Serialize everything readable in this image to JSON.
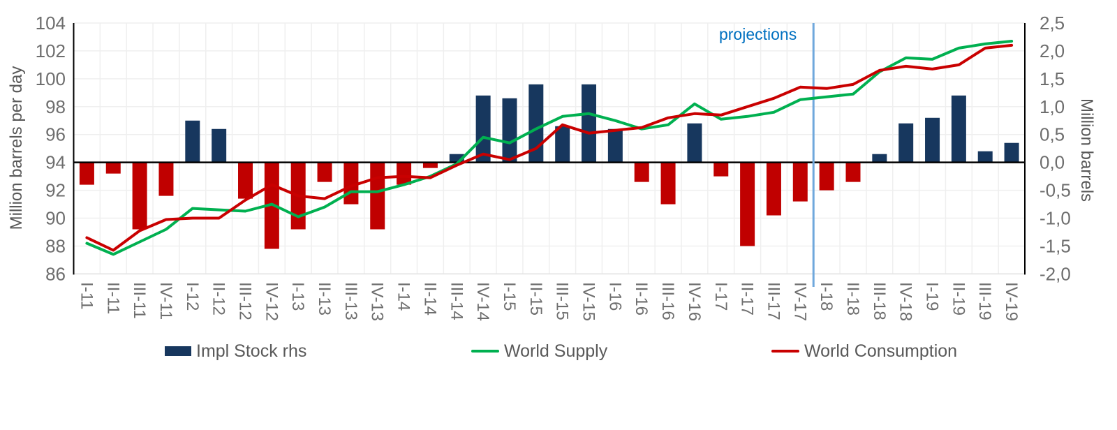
{
  "page": {
    "background": "#ffffff",
    "footer_band_color": "#000000"
  },
  "chart": {
    "left_axis": {
      "title": "Million barrels per day",
      "min": 86,
      "max": 104,
      "step": 2,
      "tick_labels": [
        "104",
        "102",
        "100",
        "98",
        "96",
        "94",
        "92",
        "90",
        "88",
        "86"
      ],
      "tick_values": [
        104,
        102,
        100,
        98,
        96,
        94,
        92,
        90,
        88,
        86
      ]
    },
    "right_axis": {
      "title": "Million barrels",
      "min": -2.0,
      "max": 2.5,
      "step": 0.5,
      "tick_labels": [
        "2,5",
        "2,0",
        "1,5",
        "1,0",
        "0,5",
        "0,0",
        "-0,5",
        "-1,0",
        "-1,5",
        "-2,0"
      ],
      "tick_values": [
        2.5,
        2.0,
        1.5,
        1.0,
        0.5,
        0.0,
        -0.5,
        -1.0,
        -1.5,
        -2.0
      ]
    },
    "projections": {
      "label": "projections",
      "label_color": "#0070C0",
      "line_color": "#6FA8DC",
      "boundary_index": 28
    },
    "colors": {
      "bar_positive": "#17375E",
      "bar_negative": "#C00000",
      "supply_line": "#00B050",
      "consumption_line": "#C90000",
      "gridline": "#EFEFEF",
      "axis_line": "#000000",
      "zero_line": "#000000",
      "tick_text": "#6E6E6E",
      "label_text": "#595959"
    }
  },
  "chart_data": {
    "type": "bar+line",
    "title": "",
    "xlabel": "",
    "ylabel_left": "Million barrels per day",
    "ylabel_right": "Million barrels",
    "left_axis_range": [
      86,
      104
    ],
    "right_axis_range": [
      -2.0,
      2.5
    ],
    "grid": "on",
    "legend_position": "bottom",
    "categories": [
      "I-11",
      "II-11",
      "III-11",
      "IV-11",
      "I-12",
      "II-12",
      "III-12",
      "IV-12",
      "I-13",
      "II-13",
      "III-13",
      "IV-13",
      "I-14",
      "II-14",
      "III-14",
      "IV-14",
      "I-15",
      "II-15",
      "III-15",
      "IV-15",
      "I-16",
      "II-16",
      "III-16",
      "IV-16",
      "I-17",
      "II-17",
      "III-17",
      "IV-17",
      "I-18",
      "II-18",
      "III-18",
      "IV-18",
      "I-19",
      "II-19",
      "III-19",
      "IV-19"
    ],
    "series": [
      {
        "name": "Impl Stock rhs",
        "type": "bar",
        "axis": "right",
        "color_positive": "#17375E",
        "color_negative": "#C00000",
        "values": [
          -0.4,
          -0.2,
          -1.2,
          -0.6,
          0.75,
          0.6,
          -0.65,
          -1.55,
          -1.2,
          -0.35,
          -0.75,
          -1.2,
          -0.4,
          -0.1,
          0.15,
          1.2,
          1.15,
          1.4,
          0.65,
          1.4,
          0.6,
          -0.35,
          -0.75,
          0.7,
          -0.25,
          -1.5,
          -0.95,
          -0.7,
          -0.5,
          -0.35,
          0.15,
          0.7,
          0.8,
          1.2,
          0.2,
          0.35
        ]
      },
      {
        "name": "World Supply",
        "type": "line",
        "axis": "left",
        "color": "#00B050",
        "values": [
          88.2,
          87.4,
          88.3,
          89.2,
          90.7,
          90.6,
          90.5,
          91.0,
          90.1,
          90.8,
          91.9,
          91.9,
          92.4,
          93.0,
          93.9,
          95.8,
          95.4,
          96.4,
          97.3,
          97.5,
          97.0,
          96.4,
          96.7,
          98.2,
          97.1,
          97.3,
          97.6,
          98.5,
          98.7,
          98.9,
          100.5,
          101.5,
          101.4,
          102.2,
          102.5,
          102.7
        ]
      },
      {
        "name": "World Consumption",
        "type": "line",
        "axis": "left",
        "color": "#C90000",
        "values": [
          88.6,
          87.7,
          89.1,
          89.9,
          90.0,
          90.0,
          91.3,
          92.4,
          91.6,
          91.4,
          92.3,
          92.9,
          93.0,
          92.9,
          93.8,
          94.6,
          94.2,
          95.0,
          96.7,
          96.1,
          96.3,
          96.5,
          97.2,
          97.5,
          97.4,
          98.0,
          98.6,
          99.4,
          99.3,
          99.6,
          100.6,
          100.9,
          100.7,
          101.0,
          102.2,
          102.4
        ]
      }
    ],
    "projections_label": "projections",
    "projections_line_after_category": "IV-17"
  }
}
